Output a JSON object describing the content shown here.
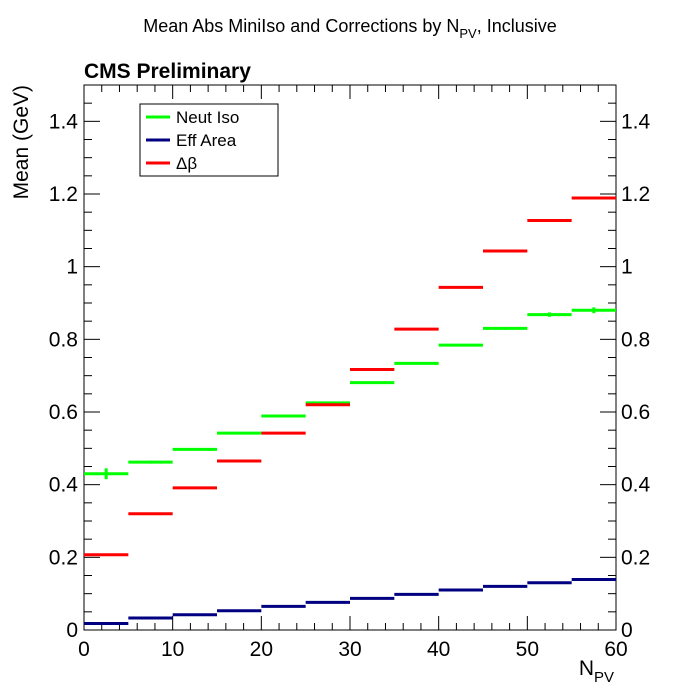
{
  "chart_data": {
    "type": "line",
    "title": "Mean Abs MiniIso and Corrections by N",
    "title_sub": "PV",
    "title_suffix": ", Inclusive",
    "annotation": "CMS Preliminary",
    "xlabel": "N",
    "xlabel_sub": "PV",
    "ylabel": "Mean (GeV)",
    "xlim": [
      0,
      60
    ],
    "ylim": [
      0,
      1.5
    ],
    "grid": false,
    "legend_position": "top-left",
    "x_bins": [
      [
        0,
        5
      ],
      [
        5,
        10
      ],
      [
        10,
        15
      ],
      [
        15,
        20
      ],
      [
        20,
        25
      ],
      [
        25,
        30
      ],
      [
        30,
        35
      ],
      [
        35,
        40
      ],
      [
        40,
        45
      ],
      [
        45,
        50
      ],
      [
        50,
        55
      ],
      [
        55,
        60
      ]
    ],
    "x_ticks": [
      0,
      10,
      20,
      30,
      40,
      50,
      60
    ],
    "x_tick_labels": [
      "0",
      "10",
      "20",
      "30",
      "40",
      "50",
      "60"
    ],
    "y_ticks": [
      0,
      0.2,
      0.4,
      0.6,
      0.8,
      1.0,
      1.2,
      1.4
    ],
    "y_tick_labels": [
      "0",
      "0.2",
      "0.4",
      "0.6",
      "0.8",
      "1",
      "1.2",
      "1.4"
    ],
    "series": [
      {
        "name": "Neut Iso",
        "color": "#00ff00",
        "values": [
          0.43,
          0.462,
          0.497,
          0.542,
          0.589,
          0.625,
          0.681,
          0.734,
          0.784,
          0.83,
          0.868,
          0.88
        ],
        "errors": [
          0.015,
          0.004,
          0.003,
          0.003,
          0.003,
          0.003,
          0.003,
          0.003,
          0.003,
          0.004,
          0.006,
          0.008
        ]
      },
      {
        "name": "Eff Area",
        "color": "#000080",
        "values": [
          0.018,
          0.033,
          0.042,
          0.053,
          0.065,
          0.076,
          0.087,
          0.098,
          0.11,
          0.12,
          0.13,
          0.139
        ],
        "errors": [
          0,
          0,
          0,
          0,
          0,
          0,
          0,
          0,
          0,
          0,
          0,
          0
        ]
      },
      {
        "name": "Δβ",
        "color": "#ff0000",
        "values": [
          0.207,
          0.32,
          0.391,
          0.465,
          0.542,
          0.62,
          0.717,
          0.828,
          0.943,
          1.043,
          1.127,
          1.189
        ],
        "errors": [
          0,
          0,
          0,
          0,
          0,
          0,
          0,
          0,
          0,
          0,
          0,
          0
        ]
      }
    ]
  }
}
